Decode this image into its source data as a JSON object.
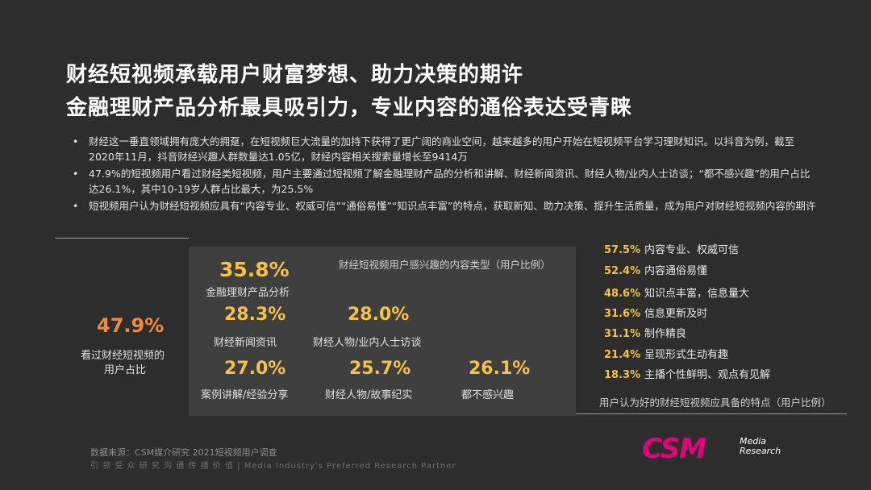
{
  "title_line1": "财经短视频承载用户财富梦想、助力决策的期许",
  "title_line2": "金融理财产品分析最具吸引力，专业内容的通俗表达受青睐",
  "bullets": [
    "财经这一垂直领域拥有庞大的拥趸，在短视频巨大流量的加持下获得了更广阔的商业空间，越来越多的用户开始在短视频平台学习理财知识。以抖音为例，截至2020年11月，抖音财经兴趣人群数量达1.05亿，财经内容相关搜索量增长至9414万",
    "47.9%的短视频用户看过财经类短视频，用户主要通过短视频了解金融理财产品的分析和讲解、财经新闻资讯、财经人物/业内人士访谈；“都不感兴趣”的用户占比达26.1%，其中10-19岁人群占比最大，为25.5%",
    "短视频用户认为财经短视频应具有“内容专业、权威可信”“通俗易懂”“知识点丰富”的特点，获取新知、助力决策、提升生活质量，成为用户对财经短视频内容的期许"
  ],
  "bullet_marker": "•",
  "overall": {
    "value": "47.9%",
    "label_line1": "看过财经短视频的",
    "label_line2": "用户占比"
  },
  "colors": {
    "background": "#2d2d2d",
    "panel": "#3f3f3f",
    "highlight_orange": "#f08a3c",
    "highlight_yellow": "#f5c242",
    "logo_magenta": "#e4007f"
  },
  "chart_data": [
    {
      "type": "table",
      "title": "财经短视频用户感兴趣的内容类型（用户比例）",
      "categories": [
        "金融理财产品分析",
        "财经新闻资讯",
        "财经人物/业内人士访谈",
        "案例讲解/经验分享",
        "财经人物/故事纪实",
        "都不感兴趣"
      ],
      "values": [
        35.8,
        28.3,
        28.0,
        27.0,
        25.7,
        26.1
      ],
      "display": [
        "35.8%",
        "28.3%",
        "28.0%",
        "27.0%",
        "25.7%",
        "26.1%"
      ]
    },
    {
      "type": "table",
      "title": "用户认为好的财经短视频应具备的特点（用户比例）",
      "categories": [
        "内容专业、权威可信",
        "内容通俗易懂",
        "知识点丰富，信息量大",
        "信息更新及时",
        "制作精良",
        "呈现形式生动有趣",
        "主播个性鲜明、观点有见解"
      ],
      "values": [
        57.5,
        52.4,
        48.6,
        31.6,
        31.1,
        21.4,
        18.3
      ],
      "display": [
        "57.5%",
        "52.4%",
        "48.6%",
        "31.6%",
        "31.1%",
        "21.4%",
        "18.3%"
      ]
    }
  ],
  "footer": {
    "source": "数据来源：CSM媒介研究 2021短视频用户调查",
    "slogan": "引 领 受 众 研 究   沟 通 传 播 价 值 | Media Industry's Preferred Research Partner",
    "logo_text": "CSM",
    "logo_sub1": "Media",
    "logo_sub2": "Research"
  }
}
